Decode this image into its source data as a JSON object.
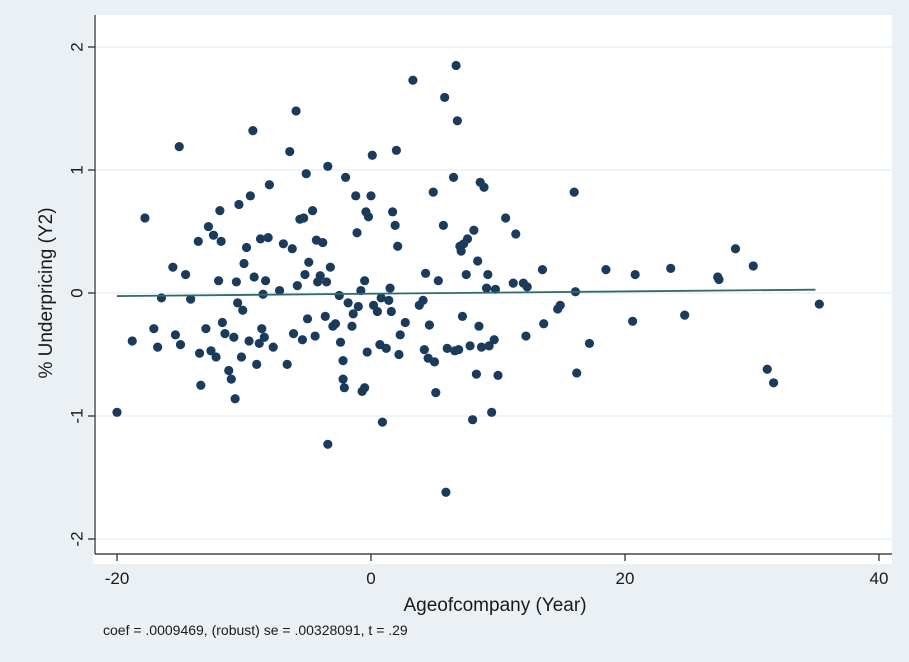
{
  "chart_data": {
    "type": "scatter",
    "title": "",
    "xlabel": "Ageofcompany (Year)",
    "ylabel": "% Underpricing (Y2)",
    "xlim": [
      -21,
      40
    ],
    "ylim": [
      -2.1,
      2.05
    ],
    "x_ticks": [
      -20,
      0,
      20,
      40
    ],
    "y_ticks": [
      -2,
      -1,
      0,
      1,
      2
    ],
    "x_tick_labels": [
      "-20",
      "0",
      "20",
      "40"
    ],
    "y_tick_labels": [
      "-2",
      "-1",
      "0",
      "1",
      "2"
    ],
    "grid": true,
    "legend": "none",
    "colors": {
      "points": "#1b3b5c",
      "fit_line": "#2f6b6b",
      "plot_bg": "#ffffff",
      "outer_bg": "#eaf0f3",
      "grid": "#e6eef2"
    },
    "fit_line": {
      "x": [
        -20,
        35
      ],
      "y": [
        -0.025,
        0.027
      ]
    },
    "series": [
      {
        "points": [
          [
            -20,
            -0.97
          ],
          [
            -18.8,
            -0.39
          ],
          [
            -17.8,
            0.61
          ],
          [
            -17.1,
            -0.29
          ],
          [
            -16.8,
            -0.44
          ],
          [
            -16.5,
            -0.04
          ],
          [
            -15.6,
            0.21
          ],
          [
            -15.4,
            -0.34
          ],
          [
            -15.1,
            1.19
          ],
          [
            -15,
            -0.42
          ],
          [
            -14.6,
            0.15
          ],
          [
            -14.2,
            -0.05
          ],
          [
            -13.6,
            0.42
          ],
          [
            -13.5,
            -0.49
          ],
          [
            -13.4,
            -0.75
          ],
          [
            -13,
            -0.29
          ],
          [
            -12.8,
            0.54
          ],
          [
            -12.6,
            -0.47
          ],
          [
            -12.4,
            0.47
          ],
          [
            -12.2,
            -0.52
          ],
          [
            -12,
            0.1
          ],
          [
            -11.9,
            0.67
          ],
          [
            -11.8,
            0.42
          ],
          [
            -11.7,
            -0.24
          ],
          [
            -11.5,
            -0.33
          ],
          [
            -11.2,
            -0.63
          ],
          [
            -11,
            -0.7
          ],
          [
            -10.8,
            -0.36
          ],
          [
            -10.7,
            -0.86
          ],
          [
            -10.6,
            0.09
          ],
          [
            -10.5,
            -0.08
          ],
          [
            -10.4,
            0.72
          ],
          [
            -10.2,
            -0.52
          ],
          [
            -10.1,
            -0.14
          ],
          [
            -10,
            0.24
          ],
          [
            -9.8,
            0.37
          ],
          [
            -9.6,
            -0.39
          ],
          [
            -9.5,
            0.79
          ],
          [
            -9.3,
            1.32
          ],
          [
            -9.2,
            0.13
          ],
          [
            -9,
            -0.58
          ],
          [
            -8.8,
            -0.41
          ],
          [
            -8.7,
            0.44
          ],
          [
            -8.6,
            -0.29
          ],
          [
            -8.5,
            -0.01
          ],
          [
            -8.4,
            -0.36
          ],
          [
            -8.3,
            0.1
          ],
          [
            -8.1,
            0.45
          ],
          [
            -8,
            0.88
          ],
          [
            -7.7,
            -0.44
          ],
          [
            -7.2,
            0.02
          ],
          [
            -6.9,
            0.4
          ],
          [
            -6.6,
            -0.58
          ],
          [
            -6.4,
            1.15
          ],
          [
            -6.2,
            0.36
          ],
          [
            -6.1,
            -0.33
          ],
          [
            -5.9,
            1.48
          ],
          [
            -5.8,
            0.06
          ],
          [
            -5.6,
            0.6
          ],
          [
            -5.4,
            -0.38
          ],
          [
            -5.3,
            0.61
          ],
          [
            -5.2,
            0.15
          ],
          [
            -5.1,
            0.97
          ],
          [
            -5,
            -0.21
          ],
          [
            -4.9,
            0.25
          ],
          [
            -4.6,
            0.67
          ],
          [
            -4.4,
            -0.35
          ],
          [
            -4.3,
            0.43
          ],
          [
            -4.2,
            0.09
          ],
          [
            -4,
            0.14
          ],
          [
            -3.8,
            0.41
          ],
          [
            -3.6,
            -0.19
          ],
          [
            -3.5,
            0.09
          ],
          [
            -3.4,
            1.03
          ],
          [
            -3.4,
            -1.23
          ],
          [
            -3.2,
            0.21
          ],
          [
            -3,
            -0.27
          ],
          [
            -2.8,
            -0.25
          ],
          [
            -2.5,
            -0.02
          ],
          [
            -2.4,
            -0.4
          ],
          [
            -2.2,
            -0.55
          ],
          [
            -2.2,
            -0.7
          ],
          [
            -2.1,
            -0.77
          ],
          [
            -2,
            0.94
          ],
          [
            -1.8,
            -0.08
          ],
          [
            -1.5,
            -0.27
          ],
          [
            -1.4,
            -0.17
          ],
          [
            -1.2,
            0.79
          ],
          [
            -1.1,
            0.49
          ],
          [
            -1,
            -0.11
          ],
          [
            -0.8,
            0.02
          ],
          [
            -0.7,
            -0.8
          ],
          [
            -0.5,
            -0.77
          ],
          [
            -0.5,
            0.1
          ],
          [
            -0.4,
            0.66
          ],
          [
            -0.3,
            -0.48
          ],
          [
            -0.2,
            0.62
          ],
          [
            0,
            0.79
          ],
          [
            0.1,
            1.12
          ],
          [
            0.2,
            -0.1
          ],
          [
            0.5,
            -0.15
          ],
          [
            0.7,
            -0.42
          ],
          [
            0.8,
            -0.04
          ],
          [
            0.9,
            -1.05
          ],
          [
            1.2,
            -0.45
          ],
          [
            1.4,
            -0.06
          ],
          [
            1.5,
            0.04
          ],
          [
            1.6,
            -0.15
          ],
          [
            1.7,
            0.66
          ],
          [
            1.9,
            0.55
          ],
          [
            2,
            1.16
          ],
          [
            2.1,
            0.38
          ],
          [
            2.2,
            -0.5
          ],
          [
            2.3,
            -0.34
          ],
          [
            2.7,
            -0.24
          ],
          [
            3.3,
            1.73
          ],
          [
            3.8,
            -0.1
          ],
          [
            4.1,
            -0.06
          ],
          [
            4.2,
            -0.46
          ],
          [
            4.3,
            0.16
          ],
          [
            4.5,
            -0.53
          ],
          [
            4.6,
            -0.26
          ],
          [
            4.9,
            0.82
          ],
          [
            5,
            -0.56
          ],
          [
            5.1,
            -0.81
          ],
          [
            5.3,
            0.1
          ],
          [
            5.7,
            0.55
          ],
          [
            5.8,
            1.59
          ],
          [
            5.9,
            -1.62
          ],
          [
            6,
            -0.45
          ],
          [
            6.5,
            0.94
          ],
          [
            6.6,
            -0.47
          ],
          [
            6.7,
            1.85
          ],
          [
            6.8,
            1.4
          ],
          [
            6.9,
            -0.46
          ],
          [
            7,
            0.38
          ],
          [
            7.1,
            0.34
          ],
          [
            7.2,
            -0.19
          ],
          [
            7.3,
            0.4
          ],
          [
            7.5,
            0.15
          ],
          [
            7.6,
            0.44
          ],
          [
            7.8,
            -0.43
          ],
          [
            8,
            -1.03
          ],
          [
            8.1,
            0.51
          ],
          [
            8.3,
            -0.66
          ],
          [
            8.4,
            0.26
          ],
          [
            8.5,
            -0.27
          ],
          [
            8.6,
            0.9
          ],
          [
            8.7,
            -0.44
          ],
          [
            8.9,
            0.86
          ],
          [
            9.1,
            0.04
          ],
          [
            9.2,
            0.15
          ],
          [
            9.3,
            -0.43
          ],
          [
            9.5,
            -0.97
          ],
          [
            9.7,
            -0.38
          ],
          [
            9.8,
            0.03
          ],
          [
            10,
            -0.67
          ],
          [
            10.6,
            0.61
          ],
          [
            11.2,
            0.08
          ],
          [
            11.4,
            0.48
          ],
          [
            12,
            0.08
          ],
          [
            12.2,
            -0.35
          ],
          [
            12.3,
            0.05
          ],
          [
            13.5,
            0.19
          ],
          [
            13.6,
            -0.25
          ],
          [
            14.7,
            -0.13
          ],
          [
            14.9,
            -0.1
          ],
          [
            16,
            0.82
          ],
          [
            16.1,
            0.01
          ],
          [
            16.2,
            -0.65
          ],
          [
            17.2,
            -0.41
          ],
          [
            18.5,
            0.19
          ],
          [
            20.6,
            -0.23
          ],
          [
            20.8,
            0.15
          ],
          [
            23.6,
            0.2
          ],
          [
            24.7,
            -0.18
          ],
          [
            27.3,
            0.13
          ],
          [
            27.4,
            0.11
          ],
          [
            28.7,
            0.36
          ],
          [
            30.1,
            0.22
          ],
          [
            31.2,
            -0.62
          ],
          [
            31.7,
            -0.73
          ],
          [
            35.3,
            -0.09
          ]
        ]
      }
    ]
  },
  "footer": {
    "note": "coef = .0009469, (robust) se = .00328091, t = .29"
  }
}
